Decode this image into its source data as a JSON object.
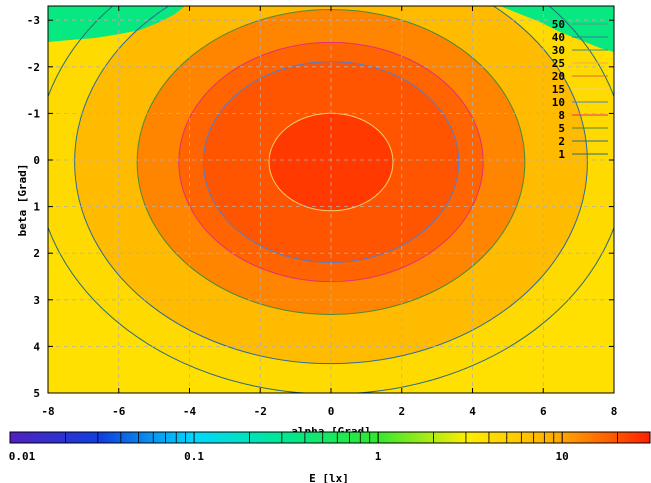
{
  "chart_data": {
    "type": "heatmap",
    "title": "",
    "xlabel": "alpha [Grad]",
    "ylabel": "beta [Grad]",
    "xlim": [
      -8,
      8
    ],
    "ylim": [
      -3.4,
      5
    ],
    "x_ticks": [
      -8,
      -6,
      -4,
      -2,
      0,
      2,
      4,
      6,
      8
    ],
    "x_tick_labels": [
      "-8",
      "-6",
      "-4",
      "-2",
      "0",
      "2",
      "4",
      "6",
      "8"
    ],
    "y_ticks": [
      -3,
      -2,
      -1,
      0,
      1,
      2,
      3,
      4,
      5
    ],
    "y_tick_labels": [
      "-3",
      "-2",
      "-1",
      "0",
      "1",
      "2",
      "3",
      "4",
      "5"
    ],
    "y_inverted": true,
    "grid": true,
    "contour_levels": [
      50,
      40,
      30,
      25,
      20,
      15,
      10,
      8,
      5,
      2,
      1
    ],
    "contour_level_labels": [
      "50",
      "40",
      "30",
      "25",
      "20",
      "15",
      "10",
      "8",
      "5",
      "2",
      "1"
    ],
    "contour_colors": [
      "#4f9a7c",
      "#2f7f8f",
      "#3b8f74",
      "#f0b040",
      "#d86a3c",
      "#f3d06a",
      "#4a7fd8",
      "#e0307a",
      "#4a8a3a",
      "#2a6a9a",
      "#2a6a7a"
    ],
    "legend_position": "top-right",
    "peak": {
      "x": 0,
      "y": 0,
      "value": 17
    },
    "colorbar": {
      "label": "E [lx]",
      "scale": "log",
      "range": [
        0.01,
        30
      ],
      "tick_values": [
        0.01,
        0.1,
        1,
        10
      ],
      "tick_labels": [
        "0.01",
        "0.1",
        "1",
        "10"
      ],
      "colors": [
        "#5020c0",
        "#1040e0",
        "#00d8ff",
        "#00e890",
        "#30e830",
        "#ffee00",
        "#ffaa00",
        "#ff2000"
      ]
    }
  }
}
